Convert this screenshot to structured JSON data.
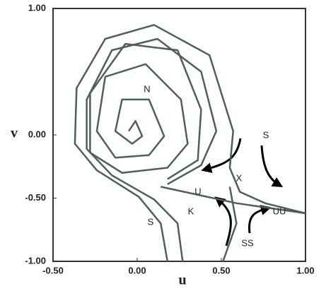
{
  "chart_data": {
    "type": "line",
    "x_label": "u",
    "y_label": "v",
    "xlim": [
      -0.5,
      1.0
    ],
    "ylim": [
      -1.0,
      1.0
    ],
    "xticks": [
      {
        "value": -0.5,
        "label": "-0.50"
      },
      {
        "value": 0,
        "label": "0.00"
      },
      {
        "value": 0.5,
        "label": "0.50"
      },
      {
        "value": 1.0,
        "label": "1.00"
      }
    ],
    "yticks": [
      {
        "value": 1.0,
        "label": "1.00"
      },
      {
        "value": 0,
        "label": "0.00"
      },
      {
        "value": -0.5,
        "label": "-0.50"
      },
      {
        "value": -1.0,
        "label": "-1.00"
      }
    ],
    "grid": false,
    "annotations": [
      "N",
      "S",
      "K",
      "U",
      "X",
      "S",
      "UU",
      "SS"
    ],
    "series": [
      {
        "color": "#4f5f5a",
        "x": [
          0.18,
          0.14,
          0.01,
          -0.24,
          -0.37,
          -0.36,
          -0.19,
          0.1,
          0.43,
          0.57,
          0.55,
          0.61,
          0.76,
          1.0
        ],
        "values": [
          -1.0,
          -0.7,
          -0.49,
          -0.28,
          -0.07,
          0.37,
          0.76,
          0.87,
          0.63,
          0.03,
          -0.26,
          -0.45,
          -0.54,
          -0.62
        ]
      },
      {
        "color": "#4f5f5a",
        "x": [
          0.27,
          0.24,
          0.1,
          -0.15,
          -0.3,
          -0.3,
          -0.15,
          0.12,
          0.38,
          0.47,
          0.38,
          0.18
        ],
        "values": [
          -1.0,
          -0.7,
          -0.51,
          -0.32,
          -0.11,
          0.28,
          0.67,
          0.76,
          0.5,
          0.03,
          -0.24,
          -0.39
        ]
      },
      {
        "color": "#4f5f5a",
        "x": [
          -0.05,
          -0.01,
          0.03,
          -0.03,
          -0.13,
          -0.09,
          0.07,
          0.16,
          0.07,
          -0.13,
          -0.24,
          -0.19,
          0.05,
          0.26,
          0.3,
          0.18,
          -0.09,
          -0.28,
          -0.28,
          -0.07,
          0.24,
          0.38,
          0.36,
          0.18
        ],
        "values": [
          0.03,
          0.11,
          -0.01,
          -0.07,
          0.03,
          0.28,
          0.28,
          -0.01,
          -0.16,
          -0.18,
          0.03,
          0.46,
          0.56,
          0.28,
          -0.07,
          -0.26,
          -0.3,
          -0.14,
          0.33,
          0.72,
          0.67,
          0.2,
          -0.2,
          -0.35
        ]
      },
      {
        "color": "#4f5f5a",
        "x": [
          0.14,
          0.59,
          1.0
        ],
        "values": [
          -0.41,
          -0.54,
          -0.62
        ]
      },
      {
        "color": "#4f5f5a",
        "x": [
          0.55,
          0.59,
          0.51
        ],
        "values": [
          -0.41,
          -0.7,
          -1.0
        ]
      }
    ]
  }
}
